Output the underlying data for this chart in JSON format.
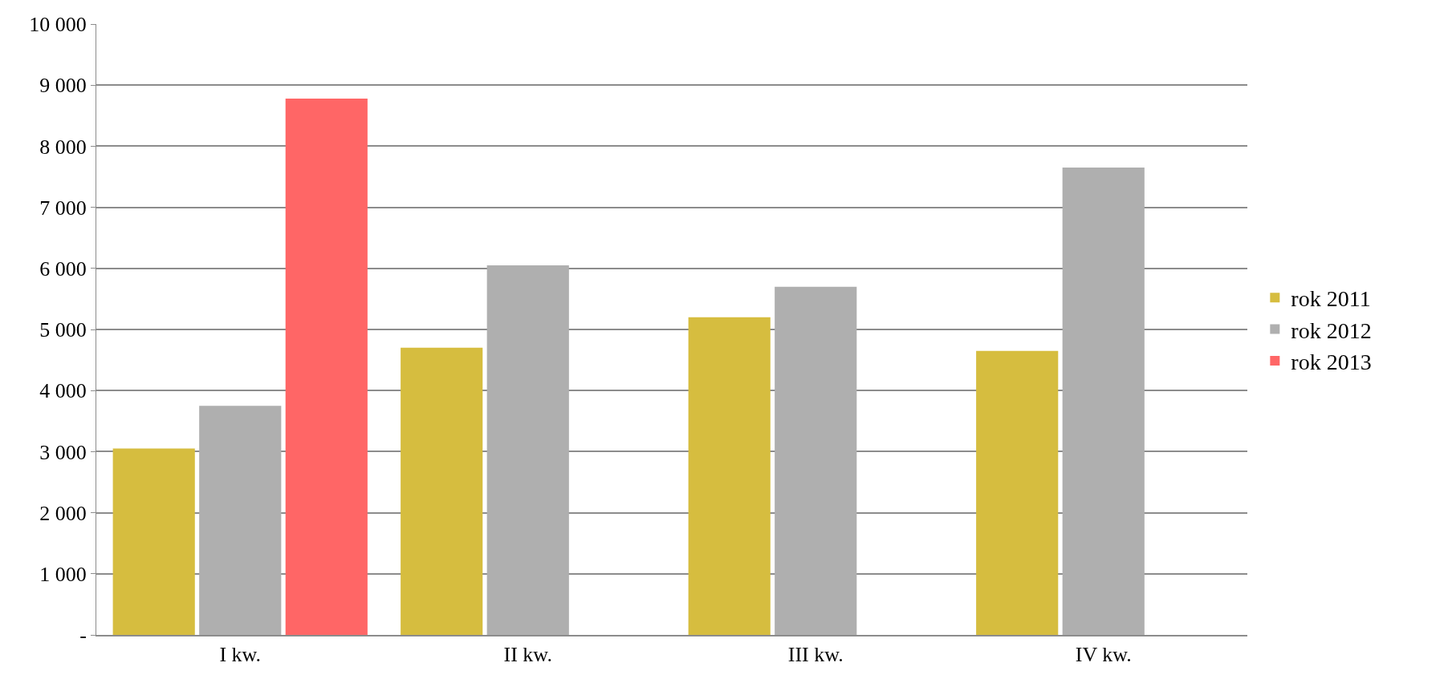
{
  "chart_data": {
    "type": "bar",
    "categories": [
      "I kw.",
      "II kw.",
      "III kw.",
      "IV kw."
    ],
    "series": [
      {
        "name": "rok 2011",
        "color": "#d6bd3f",
        "values": [
          3050,
          4700,
          5200,
          4650
        ]
      },
      {
        "name": "rok 2012",
        "color": "#afafaf",
        "values": [
          3750,
          6050,
          5700,
          7650
        ]
      },
      {
        "name": "rok 2013",
        "color": "#ff6666",
        "values": [
          8780,
          null,
          null,
          null
        ]
      }
    ],
    "ylim": [
      0,
      10000
    ],
    "yticks": [
      {
        "value": 0,
        "label": "-"
      },
      {
        "value": 1000,
        "label": "1 000"
      },
      {
        "value": 2000,
        "label": "2 000"
      },
      {
        "value": 3000,
        "label": "3 000"
      },
      {
        "value": 4000,
        "label": "4 000"
      },
      {
        "value": 5000,
        "label": "5 000"
      },
      {
        "value": 6000,
        "label": "6 000"
      },
      {
        "value": 7000,
        "label": "7 000"
      },
      {
        "value": 8000,
        "label": "8 000"
      },
      {
        "value": 9000,
        "label": "9 000"
      },
      {
        "value": 10000,
        "label": "10 000"
      }
    ],
    "grid": "y",
    "legend": "right"
  }
}
